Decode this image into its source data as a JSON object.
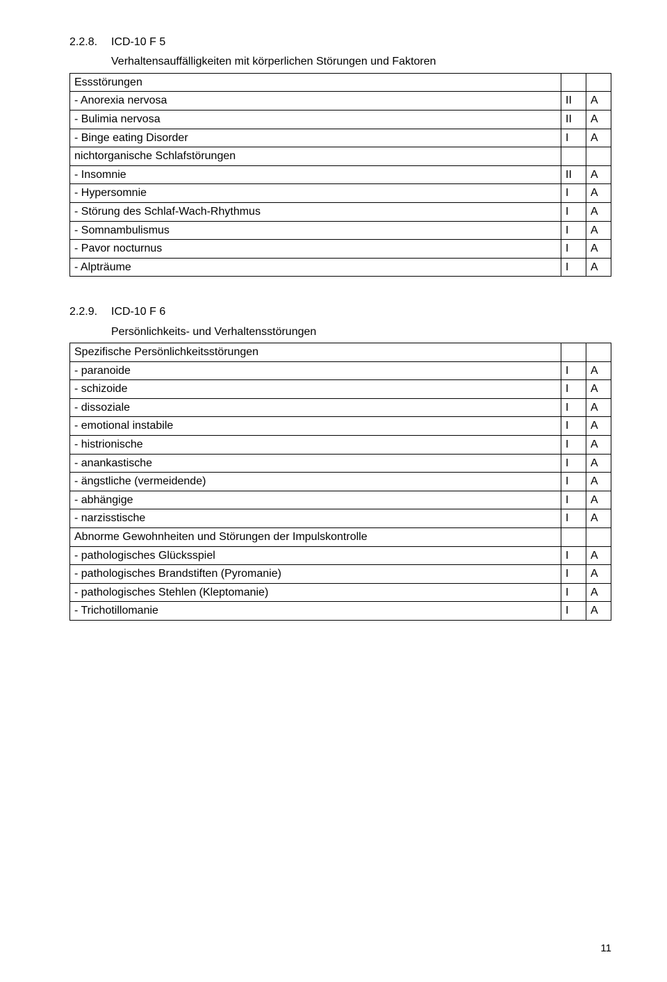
{
  "section1": {
    "number": "2.2.8.",
    "title": "ICD-10 F 5",
    "subtitle": "Verhaltensauffälligkeiten mit körperlichen Störungen und Faktoren",
    "rows": [
      {
        "label": "Essstörungen",
        "code": "",
        "cls": ""
      },
      {
        "label": "- Anorexia nervosa",
        "code": "II",
        "cls": "A"
      },
      {
        "label": "- Bulimia nervosa",
        "code": "II",
        "cls": "A"
      },
      {
        "label": "- Binge eating Disorder",
        "code": "I",
        "cls": "A"
      },
      {
        "label": "nichtorganische Schlafstörungen",
        "code": "",
        "cls": ""
      },
      {
        "label": "- Insomnie",
        "code": "II",
        "cls": "A"
      },
      {
        "label": "- Hypersomnie",
        "code": "I",
        "cls": "A"
      },
      {
        "label": "- Störung des Schlaf-Wach-Rhythmus",
        "code": "I",
        "cls": "A"
      },
      {
        "label": "- Somnambulismus",
        "code": "I",
        "cls": "A"
      },
      {
        "label": "- Pavor nocturnus",
        "code": "I",
        "cls": "A"
      },
      {
        "label": "- Alpträume",
        "code": "I",
        "cls": "A"
      }
    ]
  },
  "section2": {
    "number": "2.2.9.",
    "title": "ICD-10 F 6",
    "subtitle": "Persönlichkeits- und Verhaltensstörungen",
    "rows": [
      {
        "label": "Spezifische Persönlichkeitsstörungen",
        "code": "",
        "cls": ""
      },
      {
        "label": "- paranoide",
        "code": "I",
        "cls": "A"
      },
      {
        "label": "- schizoide",
        "code": "I",
        "cls": "A"
      },
      {
        "label": "- dissoziale",
        "code": "I",
        "cls": "A"
      },
      {
        "label": "- emotional instabile",
        "code": "I",
        "cls": "A"
      },
      {
        "label": "- histrionische",
        "code": "I",
        "cls": "A"
      },
      {
        "label": "- anankastische",
        "code": "I",
        "cls": "A"
      },
      {
        "label": "- ängstliche (vermeidende)",
        "code": "I",
        "cls": "A"
      },
      {
        "label": "- abhängige",
        "code": "I",
        "cls": "A"
      },
      {
        "label": "- narzisstische",
        "code": "I",
        "cls": "A"
      },
      {
        "label": "Abnorme Gewohnheiten und Störungen der Impulskontrolle",
        "code": "",
        "cls": ""
      },
      {
        "label": "- pathologisches Glücksspiel",
        "code": "I",
        "cls": "A"
      },
      {
        "label": "- pathologisches Brandstiften (Pyromanie)",
        "code": "I",
        "cls": "A"
      },
      {
        "label": "- pathologisches Stehlen (Kleptomanie)",
        "code": "I",
        "cls": "A"
      },
      {
        "label": "- Trichotillomanie",
        "code": "I",
        "cls": "A"
      }
    ]
  },
  "pageNumber": "11"
}
